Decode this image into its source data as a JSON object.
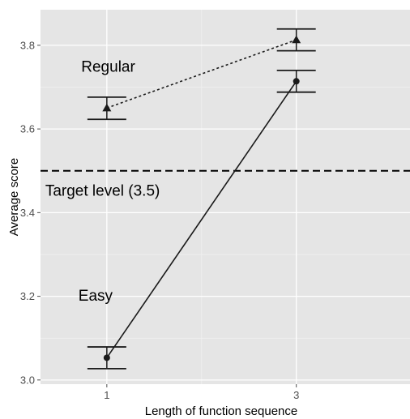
{
  "chart_data": {
    "type": "line",
    "title": "",
    "xlabel": "Length of function sequence",
    "ylabel": "Average score",
    "xlim": [
      0.3,
      4.2
    ],
    "ylim": [
      2.99,
      3.885
    ],
    "x_ticks": [
      1,
      3
    ],
    "x_tick_labels": [
      "1",
      "3"
    ],
    "y_ticks": [
      3.0,
      3.2,
      3.4,
      3.6,
      3.8
    ],
    "y_tick_labels": [
      "3.0",
      "3.2",
      "3.4",
      "3.6",
      "3.8"
    ],
    "grid": true,
    "series": [
      {
        "key": "regular",
        "line_style": "dotted",
        "marker": "triangle",
        "points": [
          {
            "x": 1,
            "y": 3.65,
            "err_low": 3.623,
            "err_high": 3.676
          },
          {
            "x": 3,
            "y": 3.813,
            "err_low": 3.787,
            "err_high": 3.839
          }
        ]
      },
      {
        "key": "easy",
        "line_style": "solid",
        "marker": "circle",
        "points": [
          {
            "x": 1,
            "y": 3.053,
            "err_low": 3.027,
            "err_high": 3.079
          },
          {
            "x": 3,
            "y": 3.714,
            "err_low": 3.688,
            "err_high": 3.74
          }
        ]
      }
    ],
    "reference_line": {
      "y": 3.5,
      "style": "dashed",
      "label": "Target level (3.5)"
    },
    "annotations": [
      {
        "text": "Regular",
        "x": 0.73,
        "y": 3.737
      },
      {
        "text": "Easy",
        "x": 0.7,
        "y": 3.19
      },
      {
        "text": "Target level (3.5)",
        "x": 0.35,
        "y": 3.44
      }
    ],
    "colors": {
      "panel": "#e5e5e5",
      "grid_major": "#ffffff",
      "grid_minor": "#f2f2f2",
      "ink": "#1a1a1a"
    }
  }
}
